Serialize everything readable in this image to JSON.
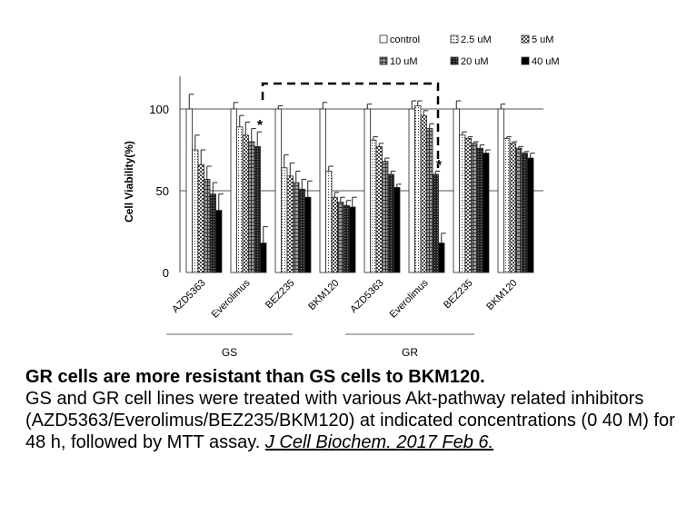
{
  "chart_data": {
    "type": "bar",
    "ylabel": "Cell Viability(%)",
    "ylim": [
      0,
      120
    ],
    "yticks": [
      0,
      50,
      100
    ],
    "grid": "horizontal lines at 50 and 100",
    "legend_position": "top-right",
    "categories": [
      "AZD5363",
      "Everolimus",
      "BEZ235",
      "BKM120",
      "AZD5363",
      "Everolimus",
      "BEZ235",
      "BKM120"
    ],
    "groups": [
      {
        "label": "GS",
        "categories": [
          0,
          1,
          2,
          3
        ]
      },
      {
        "label": "GR",
        "categories": [
          4,
          5,
          6,
          7
        ]
      }
    ],
    "series": [
      {
        "name": "control",
        "values": [
          100,
          100,
          100,
          100,
          100,
          100,
          100,
          100
        ],
        "errors": [
          9,
          4,
          2,
          4,
          3,
          5,
          5,
          3
        ]
      },
      {
        "name": "2.5 uM",
        "values": [
          75,
          89,
          64,
          62,
          81,
          102,
          84,
          82
        ],
        "errors": [
          9,
          7,
          8,
          3,
          2,
          3,
          2,
          1
        ]
      },
      {
        "name": "5 uM",
        "values": [
          66,
          84,
          59,
          46,
          77,
          96,
          82,
          79
        ],
        "errors": [
          9,
          8,
          8,
          3,
          2,
          3,
          1,
          1
        ]
      },
      {
        "name": "10 uM",
        "values": [
          57,
          80,
          55,
          43,
          68,
          88,
          79,
          76
        ],
        "errors": [
          8,
          8,
          7,
          3,
          2,
          3,
          1,
          1
        ]
      },
      {
        "name": "20 uM",
        "values": [
          48,
          77,
          51,
          41,
          60,
          60,
          76,
          73
        ],
        "errors": [
          7,
          9,
          6,
          3,
          2,
          2,
          2,
          1
        ]
      },
      {
        "name": "40 uM",
        "values": [
          38,
          18,
          46,
          40,
          52,
          18,
          73,
          70
        ],
        "errors": [
          10,
          10,
          10,
          6,
          2,
          6,
          2,
          3
        ]
      }
    ],
    "annotations": [
      "*",
      "*"
    ],
    "highlight": "dashed bracket over Everolimus (GS) to Everolimus (GR)"
  },
  "caption": {
    "title": "GR cells are more resistant than GS cells to BKM120.",
    "body": "GS and GR cell lines were treated with various Akt-pathway related inhibitors (AZD5363/Everolimus/BEZ235/BKM120) at indicated concentrations (0 40  M) for 48 h, followed by MTT assay. ",
    "citation": "J Cell Biochem. 2017 Feb 6."
  },
  "colors": {
    "bar_stroke": "#222222",
    "axis": "#444444",
    "text": "#000000"
  }
}
